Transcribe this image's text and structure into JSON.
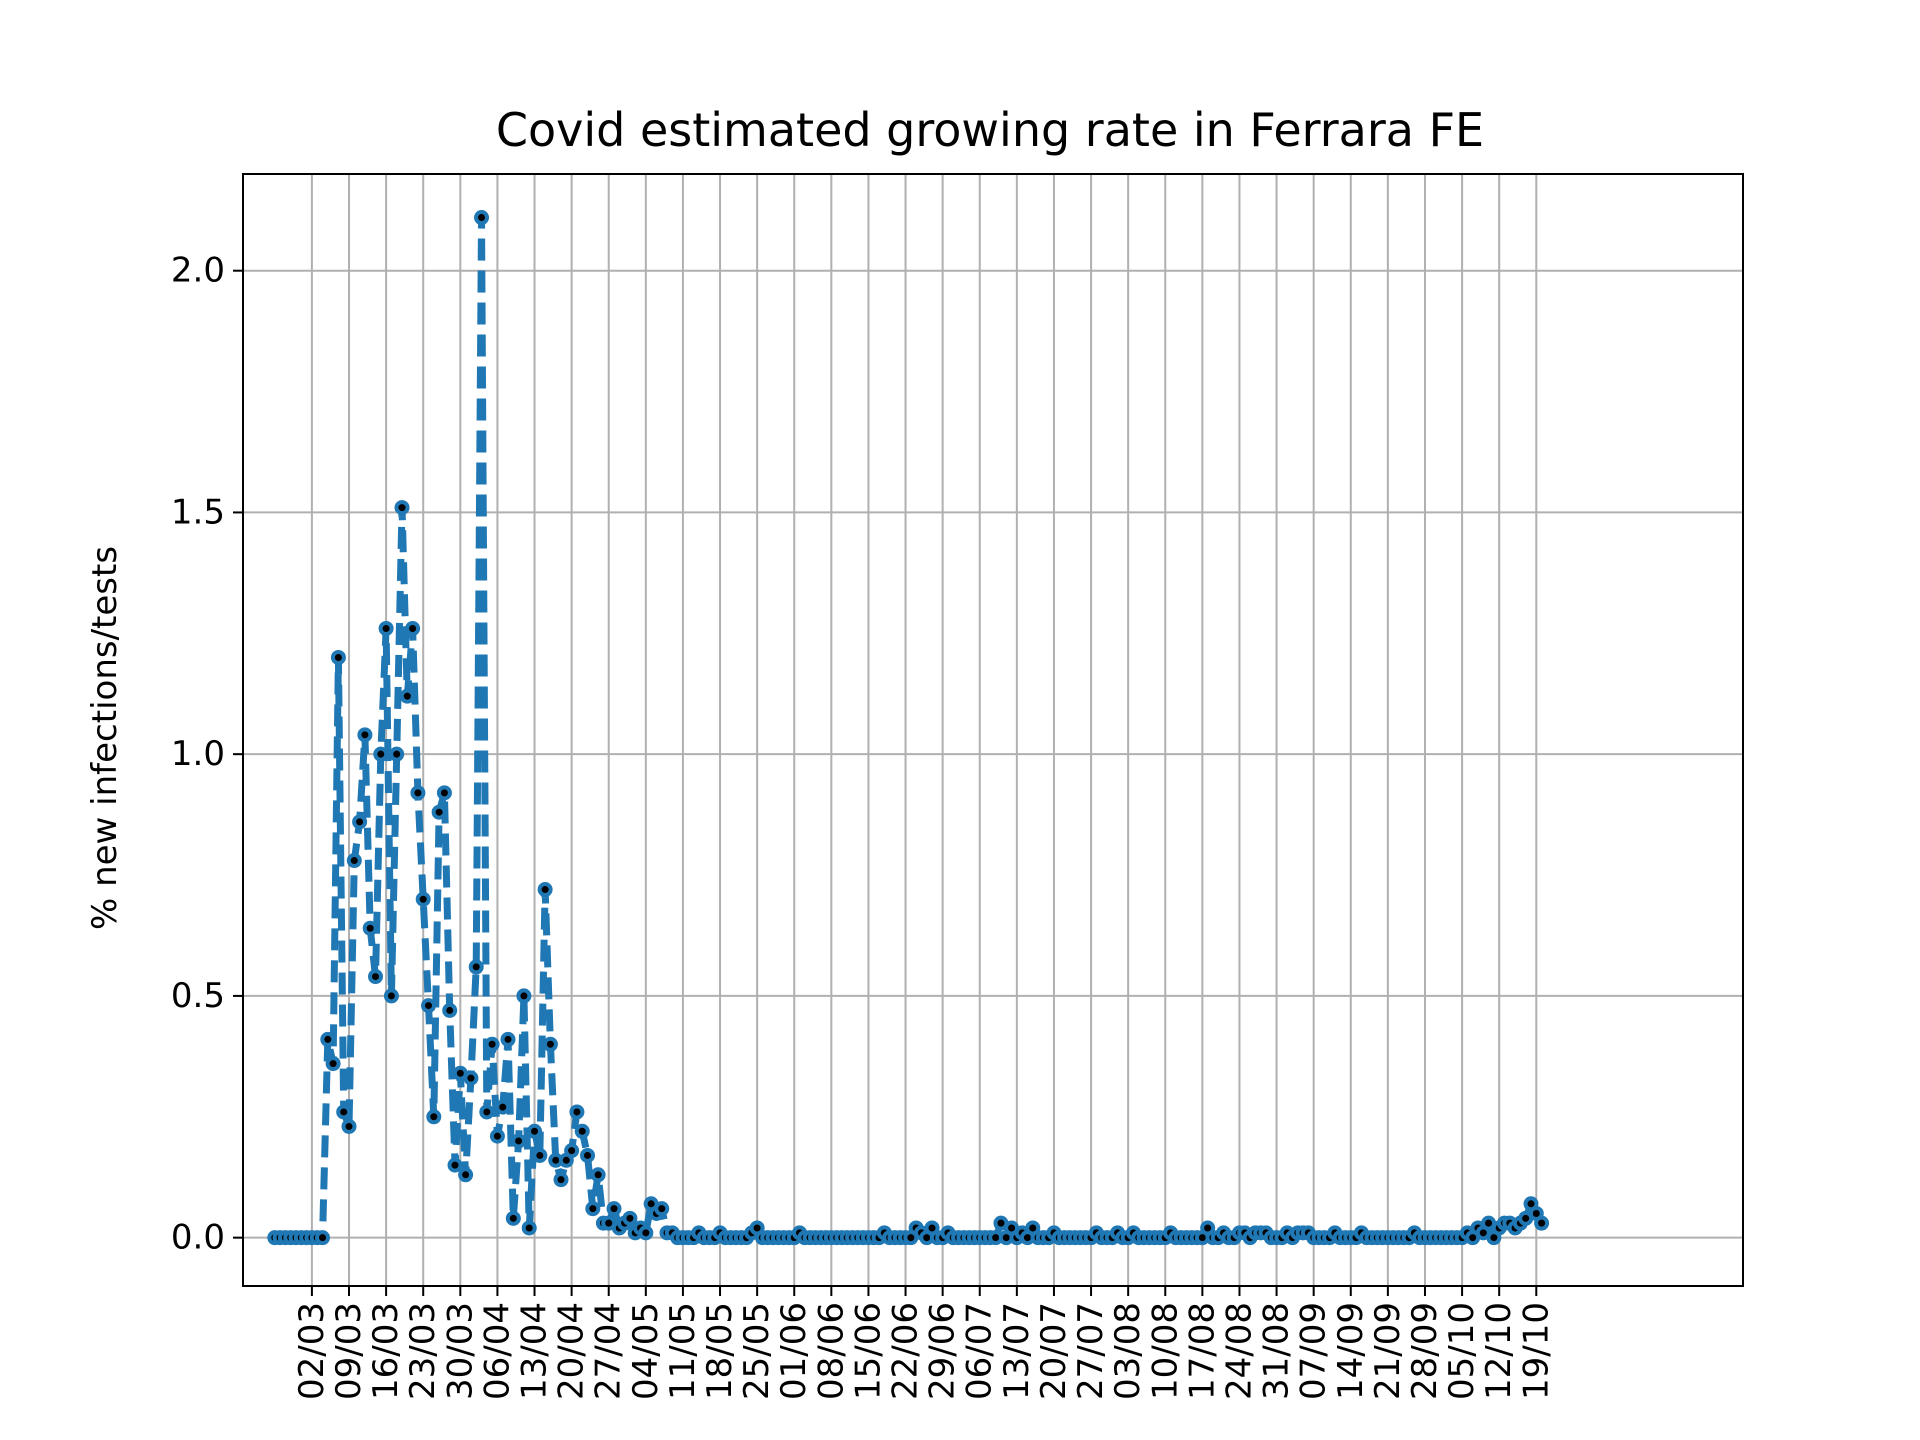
{
  "chart_data": {
    "type": "line",
    "title": "Covid estimated growing rate in Ferrara FE",
    "xlabel": "",
    "ylabel": "% new infections/tests",
    "ylim": [
      -0.1,
      2.2
    ],
    "xlim": [
      -6,
      277
    ],
    "grid": true,
    "legend": "none",
    "line_color": "#1f77b4",
    "marker_color": "#000000",
    "line_style": "dashed",
    "x_ticks": [
      {
        "x": 7,
        "label": "02/03"
      },
      {
        "x": 14,
        "label": "09/03"
      },
      {
        "x": 21,
        "label": "16/03"
      },
      {
        "x": 28,
        "label": "23/03"
      },
      {
        "x": 35,
        "label": "30/03"
      },
      {
        "x": 42,
        "label": "06/04"
      },
      {
        "x": 49,
        "label": "13/04"
      },
      {
        "x": 56,
        "label": "20/04"
      },
      {
        "x": 63,
        "label": "27/04"
      },
      {
        "x": 70,
        "label": "04/05"
      },
      {
        "x": 77,
        "label": "11/05"
      },
      {
        "x": 84,
        "label": "18/05"
      },
      {
        "x": 91,
        "label": "25/05"
      },
      {
        "x": 98,
        "label": "01/06"
      },
      {
        "x": 105,
        "label": "08/06"
      },
      {
        "x": 112,
        "label": "15/06"
      },
      {
        "x": 119,
        "label": "22/06"
      },
      {
        "x": 126,
        "label": "29/06"
      },
      {
        "x": 133,
        "label": "06/07"
      },
      {
        "x": 140,
        "label": "13/07"
      },
      {
        "x": 147,
        "label": "20/07"
      },
      {
        "x": 154,
        "label": "27/07"
      },
      {
        "x": 161,
        "label": "03/08"
      },
      {
        "x": 168,
        "label": "10/08"
      },
      {
        "x": 175,
        "label": "17/08"
      },
      {
        "x": 182,
        "label": "24/08"
      },
      {
        "x": 189,
        "label": "31/08"
      },
      {
        "x": 196,
        "label": "07/09"
      },
      {
        "x": 203,
        "label": "14/09"
      },
      {
        "x": 210,
        "label": "21/09"
      },
      {
        "x": 217,
        "label": "28/09"
      },
      {
        "x": 224,
        "label": "05/10"
      },
      {
        "x": 231,
        "label": "12/10"
      },
      {
        "x": 238,
        "label": "19/10"
      }
    ],
    "y_ticks": [
      {
        "y": 0.0,
        "label": "0.0"
      },
      {
        "y": 0.5,
        "label": "0.5"
      },
      {
        "y": 1.0,
        "label": "1.0"
      },
      {
        "y": 1.5,
        "label": "1.5"
      },
      {
        "y": 2.0,
        "label": "2.0"
      }
    ],
    "series": [
      {
        "values": [
          0,
          0,
          0,
          0,
          0,
          0,
          0,
          0,
          0,
          0,
          0.41,
          0.36,
          1.2,
          0.26,
          0.23,
          0.78,
          0.86,
          1.04,
          0.64,
          0.54,
          1.0,
          1.26,
          0.5,
          1.0,
          1.51,
          1.12,
          1.26,
          0.92,
          0.7,
          0.48,
          0.25,
          0.88,
          0.92,
          0.47,
          0.15,
          0.34,
          0.13,
          0.33,
          0.56,
          2.11,
          0.26,
          0.4,
          0.21,
          0.27,
          0.41,
          0.04,
          0.2,
          0.5,
          0.02,
          0.22,
          0.17,
          0.72,
          0.4,
          0.16,
          0.12,
          0.16,
          0.18,
          0.26,
          0.22,
          0.17,
          0.06,
          0.13,
          0.03,
          0.03,
          0.06,
          0.02,
          0.03,
          0.04,
          0.01,
          0.02,
          0.01,
          0.07,
          0.05,
          0.06,
          0.01,
          0.01,
          0.0,
          0.0,
          0.0,
          0.0,
          0.01,
          0.0,
          0.0,
          0.0,
          0.01,
          0.0,
          0.0,
          0.0,
          0.0,
          0.0,
          0.01,
          0.02,
          0.0,
          0.0,
          0.0,
          0.0,
          0.0,
          0.0,
          0.0,
          0.01,
          0.0,
          0.0,
          0.0,
          0.0,
          0.0,
          0.0,
          0.0,
          0.0,
          0.0,
          0.0,
          0.0,
          0.0,
          0.0,
          0.0,
          0.0,
          0.01,
          0.0,
          0.0,
          0.0,
          0.0,
          0.0,
          0.02,
          0.01,
          0.0,
          0.02,
          0.0,
          0.0,
          0.01,
          0.0,
          0.0,
          0.0,
          0.0,
          0.0,
          0.0,
          0.0,
          0.0,
          0.0,
          0.03,
          0.0,
          0.02,
          0.0,
          0.01,
          0.0,
          0.02,
          0.0,
          0.0,
          0.0,
          0.01,
          0.0,
          0.0,
          0.0,
          0.0,
          0.0,
          0.0,
          0.0,
          0.01,
          0.0,
          0.0,
          0.0,
          0.01,
          0.0,
          0.0,
          0.01,
          0.0,
          0.0,
          0.0,
          0.0,
          0.0,
          0.0,
          0.01,
          0.0,
          0.0,
          0.0,
          0.0,
          0.0,
          0.0,
          0.02,
          0.0,
          0.0,
          0.01,
          0.0,
          0.0,
          0.01,
          0.01,
          0.0,
          0.01,
          0.01,
          0.01,
          0.0,
          0.0,
          0.0,
          0.01,
          0.0,
          0.01,
          0.01,
          0.01,
          0.0,
          0.0,
          0.0,
          0.0,
          0.01,
          0.0,
          0.0,
          0.0,
          0.0,
          0.01,
          0.0,
          0.0,
          0.0,
          0.0,
          0.0,
          0.0,
          0.0,
          0.0,
          0.0,
          0.01,
          0.0,
          0.0,
          0.0,
          0.0,
          0.0,
          0.0,
          0.0,
          0.0,
          0.0,
          0.01,
          0.0,
          0.02,
          0.01,
          0.03,
          0.0,
          0.02,
          0.03,
          0.03,
          0.02,
          0.03,
          0.04,
          0.07,
          0.05,
          0.03
        ]
      }
    ]
  }
}
